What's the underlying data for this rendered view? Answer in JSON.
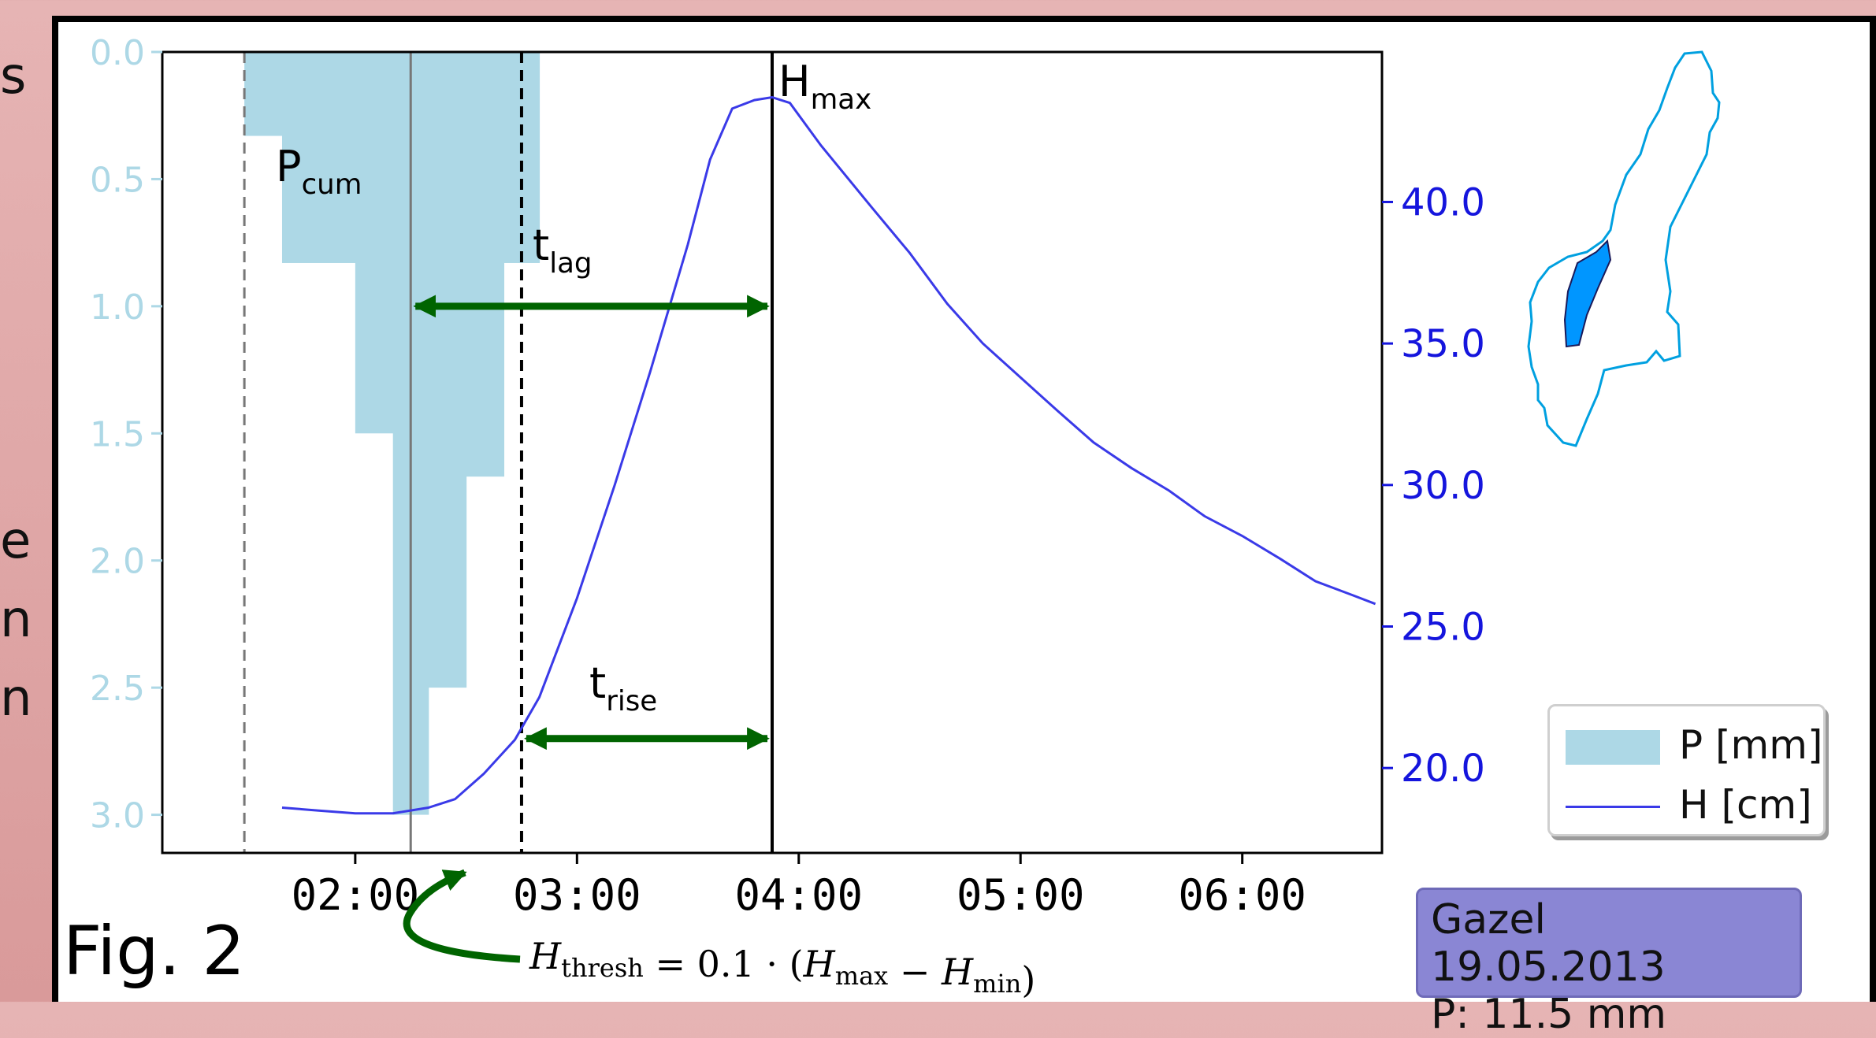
{
  "figure_label": "Fig. 2",
  "side_text_fragments": [
    "s",
    "e",
    "n",
    "n"
  ],
  "info_box": {
    "line1": "Gazel 19.05.2013",
    "line2": "P: 11.5 mm"
  },
  "annotations": {
    "p_cum": {
      "base": "P",
      "sub": "cum"
    },
    "t_lag": {
      "base": "t",
      "sub": "lag"
    },
    "t_rise": {
      "base": "t",
      "sub": "rise"
    },
    "h_max": {
      "base": "H",
      "sub": "max"
    },
    "formula": {
      "lhs": "H",
      "lhs_sub": "thresh",
      "eq": " = 0.1 · (",
      "a": "H",
      "a_sub": "max",
      "minus": " − ",
      "b": "H",
      "b_sub": "min",
      "close": ")"
    }
  },
  "colors": {
    "precip": "#add8e6",
    "stage": "#3a3ae8",
    "arrows": "#006400",
    "left_axis": "#add8e6",
    "right_axis": "#1515dd",
    "info_box": "#8a86d4",
    "catchment_outline": "#00a0e0",
    "catchment_fill": "#0096ff"
  },
  "chart_data": {
    "type": "line",
    "x_axis": {
      "ticks": [
        "02:00",
        "03:00",
        "04:00",
        "05:00",
        "06:00"
      ],
      "range_hours": [
        1.13,
        6.63
      ]
    },
    "y_left": {
      "label": "",
      "inverted": true,
      "range": [
        0.0,
        3.15
      ],
      "ticks": [
        "0.0",
        "0.5",
        "1.0",
        "1.5",
        "2.0",
        "2.5",
        "3.0"
      ]
    },
    "y_right": {
      "label": "",
      "range": [
        17.0,
        45.3
      ],
      "ticks": [
        "20.0",
        "25.0",
        "30.0",
        "35.0",
        "40.0"
      ]
    },
    "legend": {
      "position": "right",
      "entries": [
        "P [mm]",
        "H [cm]"
      ]
    },
    "series": [
      {
        "name": "P [mm]",
        "kind": "step-bar",
        "steps": [
          {
            "start": 1.5,
            "end": 1.67,
            "value": 0.33
          },
          {
            "start": 1.67,
            "end": 2.0,
            "value": 0.83
          },
          {
            "start": 2.0,
            "end": 2.17,
            "value": 1.5
          },
          {
            "start": 2.17,
            "end": 2.33,
            "value": 3.0
          },
          {
            "start": 2.33,
            "end": 2.5,
            "value": 2.5
          },
          {
            "start": 2.5,
            "end": 2.67,
            "value": 1.67
          },
          {
            "start": 2.67,
            "end": 2.83,
            "value": 0.83
          }
        ]
      },
      {
        "name": "H [cm]",
        "kind": "line",
        "points": [
          [
            1.67,
            18.6
          ],
          [
            1.83,
            18.5
          ],
          [
            2.0,
            18.4
          ],
          [
            2.17,
            18.4
          ],
          [
            2.33,
            18.6
          ],
          [
            2.45,
            18.9
          ],
          [
            2.58,
            19.8
          ],
          [
            2.72,
            21.0
          ],
          [
            2.83,
            22.5
          ],
          [
            3.0,
            26.0
          ],
          [
            3.17,
            30.0
          ],
          [
            3.33,
            34.0
          ],
          [
            3.5,
            38.5
          ],
          [
            3.6,
            41.5
          ],
          [
            3.7,
            43.3
          ],
          [
            3.8,
            43.6
          ],
          [
            3.88,
            43.7
          ],
          [
            3.96,
            43.5
          ],
          [
            4.1,
            42.0
          ],
          [
            4.33,
            39.8
          ],
          [
            4.5,
            38.2
          ],
          [
            4.67,
            36.4
          ],
          [
            4.83,
            35.0
          ],
          [
            5.0,
            33.8
          ],
          [
            5.17,
            32.6
          ],
          [
            5.33,
            31.5
          ],
          [
            5.5,
            30.6
          ],
          [
            5.67,
            29.8
          ],
          [
            5.83,
            28.9
          ],
          [
            6.0,
            28.2
          ],
          [
            6.17,
            27.4
          ],
          [
            6.33,
            26.6
          ],
          [
            6.5,
            26.1
          ],
          [
            6.6,
            25.8
          ]
        ]
      }
    ],
    "vertical_markers": [
      {
        "hour": 1.5,
        "style": "dashed-gray"
      },
      {
        "hour": 2.25,
        "style": "solid-gray"
      },
      {
        "hour": 2.75,
        "style": "dashed-black"
      },
      {
        "hour": 3.88,
        "style": "solid-black"
      }
    ],
    "arrows": [
      {
        "name": "t_lag",
        "from_hour": 2.25,
        "to_hour": 3.88,
        "at_left_value": 1.0
      },
      {
        "name": "t_rise",
        "from_hour": 2.75,
        "to_hour": 3.88,
        "at_left_value": 2.7
      }
    ]
  }
}
